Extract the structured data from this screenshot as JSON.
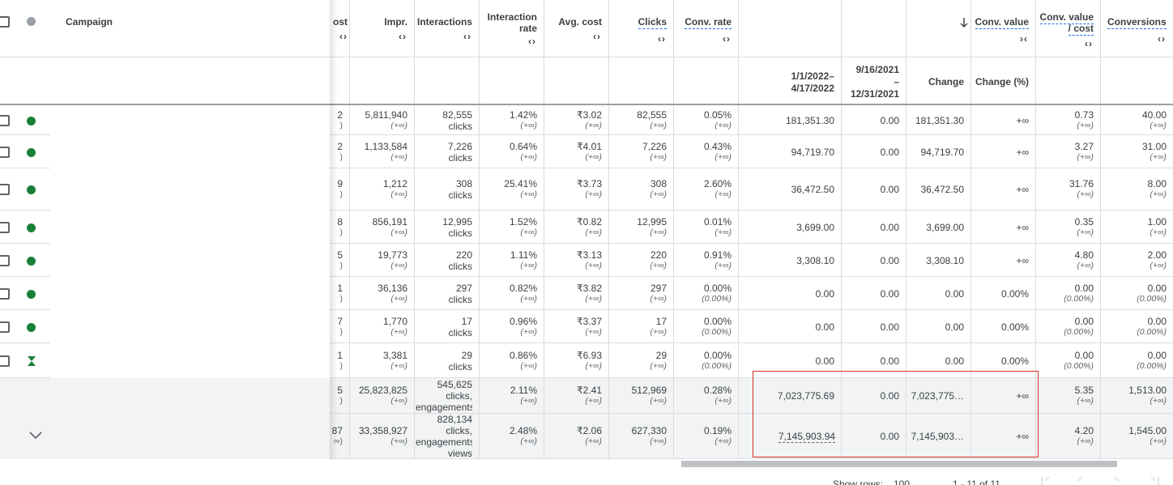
{
  "header": {
    "campaign": "Campaign",
    "columns": [
      {
        "id": "cost",
        "label": "ost"
      },
      {
        "id": "impr",
        "label": "Impr."
      },
      {
        "id": "interactions",
        "label": "Interactions"
      },
      {
        "id": "interaction_rate",
        "label": "Interaction rate"
      },
      {
        "id": "avg_cost",
        "label": "Avg. cost"
      },
      {
        "id": "clicks",
        "label": "Clicks"
      },
      {
        "id": "conv_rate",
        "label": "Conv. rate"
      },
      {
        "id": "conv_value",
        "label": "Conv. value"
      },
      {
        "id": "conv_value_cost",
        "label": "Conv. value / cost"
      },
      {
        "id": "conversions",
        "label": "Conversions"
      }
    ],
    "sort_arrows": "‹ ›",
    "sort_direction_icon": "arrow-down-icon"
  },
  "subheader": {
    "period1": "1/1/2022–4/17/2022",
    "period1_a": "1/1/2022–",
    "period1_b": "4/17/2022",
    "period2_a": "9/16/2021",
    "period2_b": "–",
    "period2_c": "12/31/2021",
    "change": "Change",
    "change_pct": "Change (%)"
  },
  "rows": [
    {
      "status": "enabled",
      "cost": "2",
      "cost_sub": ")",
      "impr": "5,811,940",
      "impr_sub": "(+∞)",
      "inter": "82,555",
      "inter_unit": "clicks",
      "irate": "1.42%",
      "irate_sub": "(+∞)",
      "avg": "₹3.02",
      "avg_sub": "(+∞)",
      "clicks": "82,555",
      "clicks_sub": "(+∞)",
      "crate": "0.05%",
      "crate_sub": "(+∞)",
      "cv1": "181,351.30",
      "cv2": "0.00",
      "change": "181,351.30",
      "change_pct": "+∞",
      "cvc": "0.73",
      "cvc_sub": "(+∞)",
      "conv": "40.00",
      "conv_sub": "(+∞)"
    },
    {
      "status": "enabled",
      "cost": "2",
      "cost_sub": ")",
      "impr": "1,133,584",
      "impr_sub": "(+∞)",
      "inter": "7,226",
      "inter_unit": "clicks",
      "irate": "0.64%",
      "irate_sub": "(+∞)",
      "avg": "₹4.01",
      "avg_sub": "(+∞)",
      "clicks": "7,226",
      "clicks_sub": "(+∞)",
      "crate": "0.43%",
      "crate_sub": "(+∞)",
      "cv1": "94,719.70",
      "cv2": "0.00",
      "change": "94,719.70",
      "change_pct": "+∞",
      "cvc": "3.27",
      "cvc_sub": "(+∞)",
      "conv": "31.00",
      "conv_sub": "(+∞)"
    },
    {
      "status": "enabled",
      "cost": "9",
      "cost_sub": ")",
      "impr": "1,212",
      "impr_sub": "(+∞)",
      "inter": "308",
      "inter_unit": "clicks",
      "irate": "25.41%",
      "irate_sub": "(+∞)",
      "avg": "₹3.73",
      "avg_sub": "(+∞)",
      "clicks": "308",
      "clicks_sub": "(+∞)",
      "crate": "2.60%",
      "crate_sub": "(+∞)",
      "cv1": "36,472.50",
      "cv2": "0.00",
      "change": "36,472.50",
      "change_pct": "+∞",
      "cvc": "31.76",
      "cvc_sub": "(+∞)",
      "conv": "8.00",
      "conv_sub": "(+∞)"
    },
    {
      "status": "enabled",
      "cost": "8",
      "cost_sub": ")",
      "impr": "856,191",
      "impr_sub": "(+∞)",
      "inter": "12,995",
      "inter_unit": "clicks",
      "irate": "1.52%",
      "irate_sub": "(+∞)",
      "avg": "₹0.82",
      "avg_sub": "(+∞)",
      "clicks": "12,995",
      "clicks_sub": "(+∞)",
      "crate": "0.01%",
      "crate_sub": "(+∞)",
      "cv1": "3,699.00",
      "cv2": "0.00",
      "change": "3,699.00",
      "change_pct": "+∞",
      "cvc": "0.35",
      "cvc_sub": "(+∞)",
      "conv": "1.00",
      "conv_sub": "(+∞)"
    },
    {
      "status": "enabled",
      "cost": "5",
      "cost_sub": ")",
      "impr": "19,773",
      "impr_sub": "(+∞)",
      "inter": "220",
      "inter_unit": "clicks",
      "irate": "1.11%",
      "irate_sub": "(+∞)",
      "avg": "₹3.13",
      "avg_sub": "(+∞)",
      "clicks": "220",
      "clicks_sub": "(+∞)",
      "crate": "0.91%",
      "crate_sub": "(+∞)",
      "cv1": "3,308.10",
      "cv2": "0.00",
      "change": "3,308.10",
      "change_pct": "+∞",
      "cvc": "4.80",
      "cvc_sub": "(+∞)",
      "conv": "2.00",
      "conv_sub": "(+∞)"
    },
    {
      "status": "enabled",
      "cost": "1",
      "cost_sub": ")",
      "impr": "36,136",
      "impr_sub": "(+∞)",
      "inter": "297",
      "inter_unit": "clicks",
      "irate": "0.82%",
      "irate_sub": "(+∞)",
      "avg": "₹3.82",
      "avg_sub": "(+∞)",
      "clicks": "297",
      "clicks_sub": "(+∞)",
      "crate": "0.00%",
      "crate_sub": "(0.00%)",
      "cv1": "0.00",
      "cv2": "0.00",
      "change": "0.00",
      "change_pct": "0.00%",
      "cvc": "0.00",
      "cvc_sub": "(0.00%)",
      "conv": "0.00",
      "conv_sub": "(0.00%)"
    },
    {
      "status": "enabled",
      "cost": "7",
      "cost_sub": ")",
      "impr": "1,770",
      "impr_sub": "(+∞)",
      "inter": "17",
      "inter_unit": "clicks",
      "irate": "0.96%",
      "irate_sub": "(+∞)",
      "avg": "₹3.37",
      "avg_sub": "(+∞)",
      "clicks": "17",
      "clicks_sub": "(+∞)",
      "crate": "0.00%",
      "crate_sub": "(0.00%)",
      "cv1": "0.00",
      "cv2": "0.00",
      "change": "0.00",
      "change_pct": "0.00%",
      "cvc": "0.00",
      "cvc_sub": "(0.00%)",
      "conv": "0.00",
      "conv_sub": "(0.00%)"
    },
    {
      "status": "limited",
      "cost": "1",
      "cost_sub": ")",
      "impr": "3,381",
      "impr_sub": "(+∞)",
      "inter": "29",
      "inter_unit": "clicks",
      "irate": "0.86%",
      "irate_sub": "(+∞)",
      "avg": "₹6.93",
      "avg_sub": "(+∞)",
      "clicks": "29",
      "clicks_sub": "(+∞)",
      "crate": "0.00%",
      "crate_sub": "(0.00%)",
      "cv1": "0.00",
      "cv2": "0.00",
      "change": "0.00",
      "change_pct": "0.00%",
      "cvc": "0.00",
      "cvc_sub": "(0.00%)",
      "conv": "0.00",
      "conv_sub": "(0.00%)"
    }
  ],
  "totals": [
    {
      "cost": "5",
      "cost_sub": ")",
      "impr": "25,823,825",
      "impr_sub": "(+∞)",
      "inter_l1": "545,625",
      "inter_l2": "clicks,",
      "inter_l3": "engagements",
      "inter_l4": "",
      "irate": "2.11%",
      "irate_sub": "(+∞)",
      "avg": "₹2.41",
      "avg_sub": "(+∞)",
      "clicks": "512,969",
      "clicks_sub": "(+∞)",
      "crate": "0.28%",
      "crate_sub": "(+∞)",
      "cv1": "7,023,775.69",
      "cv2": "0.00",
      "change": "7,023,775…",
      "change_pct": "+∞",
      "cvc": "5.35",
      "cvc_sub": "(+∞)",
      "conv": "1,513.00",
      "conv_sub": "(+∞)"
    },
    {
      "cost": "87",
      "cost_sub": "∞)",
      "impr": "33,358,927",
      "impr_sub": "(+∞)",
      "inter_l1": "828,134",
      "inter_l2": "clicks,",
      "inter_l3": "engagements,",
      "inter_l4": "views",
      "irate": "2.48%",
      "irate_sub": "(+∞)",
      "avg": "₹2.06",
      "avg_sub": "(+∞)",
      "clicks": "627,330",
      "clicks_sub": "(+∞)",
      "crate": "0.19%",
      "crate_sub": "(+∞)",
      "cv1": "7,145,903.94",
      "cv2": "0.00",
      "change": "7,145,903…",
      "change_pct": "+∞",
      "cvc": "4.20",
      "cvc_sub": "(+∞)",
      "conv": "1,545.00",
      "conv_sub": "(+∞)"
    }
  ],
  "footer": {
    "show_rows_label": "Show rows:",
    "rows_count": "100",
    "range": "1 - 11 of 11"
  },
  "colors": {
    "accent": "#1a73e8",
    "enabled": "#188038",
    "highlight": "#d93025"
  }
}
